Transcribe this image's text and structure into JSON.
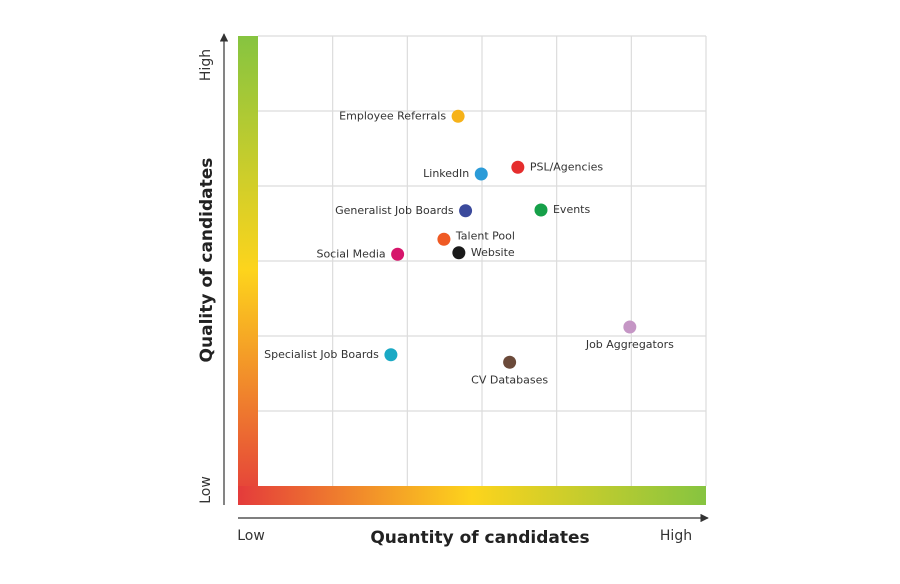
{
  "chart_data": {
    "type": "scatter",
    "x_label": "Quantity of candidates",
    "y_label": "Quality of candidates",
    "xlim": [
      0,
      6
    ],
    "ylim": [
      0,
      6
    ],
    "xticks": [
      {
        "value": 0,
        "label": "Low"
      },
      {
        "value": 6,
        "label": "High"
      }
    ],
    "yticks": [
      {
        "value": 0,
        "label": "Low"
      },
      {
        "value": 6,
        "label": "High"
      }
    ],
    "grid_x": [
      1,
      2,
      3,
      4,
      5,
      6
    ],
    "grid_y": [
      1,
      2,
      3,
      4,
      5,
      6
    ],
    "points": [
      {
        "name": "Employee Referrals",
        "x": 2.68,
        "y": 4.93,
        "color": "#f6b219"
      },
      {
        "name": "PSL/Agencies",
        "x": 3.48,
        "y": 4.25,
        "color": "#e52d2d"
      },
      {
        "name": "LinkedIn",
        "x": 2.99,
        "y": 4.16,
        "color": "#2b9bd8"
      },
      {
        "name": "Generalist Job Boards",
        "x": 2.78,
        "y": 3.67,
        "color": "#3b4a9c"
      },
      {
        "name": "Events",
        "x": 3.79,
        "y": 3.68,
        "color": "#16a049"
      },
      {
        "name": "Talent Pool",
        "x": 2.49,
        "y": 3.29,
        "color": "#ef5a24"
      },
      {
        "name": "Website",
        "x": 2.69,
        "y": 3.11,
        "color": "#1a1a1a"
      },
      {
        "name": "Social Media",
        "x": 1.87,
        "y": 3.09,
        "color": "#d6156b"
      },
      {
        "name": "Job Aggregators",
        "x": 4.98,
        "y": 2.12,
        "color": "#c596c5"
      },
      {
        "name": "Specialist Job Boards",
        "x": 1.78,
        "y": 1.75,
        "color": "#1aa9c4"
      },
      {
        "name": "CV Databases",
        "x": 3.37,
        "y": 1.65,
        "color": "#6b4a3a"
      }
    ]
  }
}
